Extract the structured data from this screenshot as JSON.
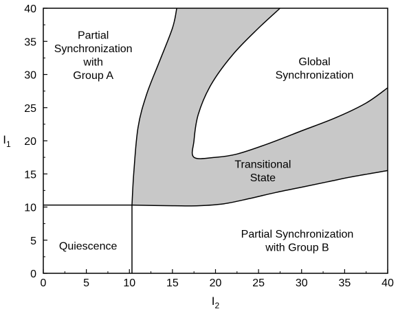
{
  "chart_data": {
    "type": "area",
    "title": "",
    "xlabel": "I",
    "xlabel_subscript": "2",
    "ylabel": "I",
    "ylabel_subscript": "1",
    "xlim": [
      0,
      40
    ],
    "ylim": [
      0,
      40
    ],
    "grid": false,
    "x_ticks": [
      "0",
      "5",
      "10",
      "15",
      "20",
      "25",
      "30",
      "35",
      "40"
    ],
    "y_ticks": [
      "0",
      "5",
      "10",
      "15",
      "20",
      "25",
      "30",
      "35",
      "40"
    ],
    "colors": {
      "shaded": "#c8c8c8",
      "line": "#000000"
    },
    "boundaries": [
      {
        "name": "horizontal-threshold",
        "x": [
          0,
          10.3
        ],
        "y": [
          10.3,
          10.3
        ]
      },
      {
        "name": "vertical-threshold",
        "x": [
          10.3,
          10.3
        ],
        "y": [
          0,
          10.3
        ]
      },
      {
        "name": "transition-upper-boundary",
        "x": [
          10.3,
          10.5,
          11.0,
          12.0,
          13.5,
          15.0,
          15.5
        ],
        "y": [
          10.3,
          15.0,
          22.0,
          27.0,
          32.0,
          37.0,
          40.0
        ]
      },
      {
        "name": "transition-lower-boundary",
        "x": [
          10.3,
          15.0,
          18.0,
          21.0,
          24.0,
          27.0,
          30.0,
          33.0,
          36.0,
          40.0
        ],
        "y": [
          10.3,
          10.2,
          10.2,
          10.5,
          11.3,
          12.2,
          13.0,
          13.8,
          14.6,
          15.5
        ]
      },
      {
        "name": "global-sync-boundary",
        "x": [
          27.5,
          25.0,
          22.0,
          19.5,
          18.0,
          17.5,
          17.5,
          20.0,
          22.5,
          26.0,
          30.0,
          34.0,
          37.5,
          40.0
        ],
        "y": [
          40.0,
          37.0,
          33.0,
          28.5,
          24.0,
          20.0,
          17.5,
          17.5,
          18.0,
          19.5,
          21.5,
          23.5,
          25.7,
          28.0
        ]
      }
    ],
    "region_labels": [
      {
        "key": "partial_a",
        "lines": [
          "Partial",
          "Synchronization",
          "with",
          "Group A"
        ],
        "x": 5.8,
        "y": 33.0
      },
      {
        "key": "global",
        "lines": [
          "Global",
          "Synchronization"
        ],
        "x": 31.5,
        "y": 31.0
      },
      {
        "key": "transitional",
        "lines": [
          "Transitional",
          "State"
        ],
        "x": 25.5,
        "y": 15.5
      },
      {
        "key": "quiescence",
        "lines": [
          "Quiescence"
        ],
        "x": 5.2,
        "y": 4.2
      },
      {
        "key": "partial_b",
        "lines": [
          "Partial Synchronization",
          "with Group B"
        ],
        "x": 29.5,
        "y": 5.0
      }
    ]
  }
}
